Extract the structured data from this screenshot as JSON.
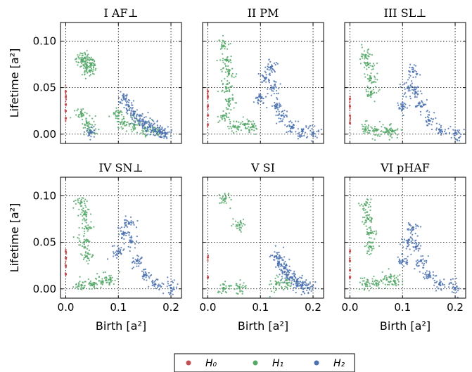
{
  "figure": {
    "panel_titles": [
      "I  AF⊥",
      "II  PM",
      "III  SL⊥",
      "IV  SN⊥",
      "V  SI",
      "VI  pHAF"
    ],
    "xlabel": "Birth [a²]",
    "ylabel": "Lifetime [a²]",
    "xticks": [
      "0.0",
      "0.1",
      "0.2"
    ],
    "yticks": [
      "0.00",
      "0.05",
      "0.10"
    ],
    "legend": [
      "H₀",
      "H₁",
      "H₂"
    ]
  },
  "colors": {
    "H0": "#c44e52",
    "H1": "#55a868",
    "H2": "#4c72b0"
  },
  "chart_data": [
    {
      "type": "scatter",
      "title": "I  AF⊥",
      "xlim": [
        -0.01,
        0.22
      ],
      "ylim": [
        -0.01,
        0.12
      ],
      "grid": true,
      "series": [
        {
          "name": "H₀",
          "points": [
            [
              0.0,
              0.017
            ],
            [
              0.0,
              0.025
            ],
            [
              0.0,
              0.032
            ],
            [
              0.0,
              0.04
            ],
            [
              0.0,
              0.046
            ]
          ]
        },
        {
          "name": "H₁",
          "points": [
            [
              0.03,
              0.08
            ],
            [
              0.036,
              0.082
            ],
            [
              0.04,
              0.074
            ],
            [
              0.045,
              0.068
            ],
            [
              0.048,
              0.076
            ],
            [
              0.03,
              0.022
            ],
            [
              0.04,
              0.012
            ],
            [
              0.046,
              0.004
            ],
            [
              0.1,
              0.02
            ],
            [
              0.11,
              0.012
            ],
            [
              0.13,
              0.01
            ],
            [
              0.15,
              0.006
            ],
            [
              0.17,
              0.003
            ]
          ]
        },
        {
          "name": "H₂",
          "points": [
            [
              0.048,
              0.002
            ],
            [
              0.11,
              0.04
            ],
            [
              0.12,
              0.03
            ],
            [
              0.13,
              0.022
            ],
            [
              0.14,
              0.015
            ],
            [
              0.15,
              0.012
            ],
            [
              0.16,
              0.008
            ],
            [
              0.17,
              0.005
            ],
            [
              0.18,
              0.003
            ],
            [
              0.19,
              0.001
            ]
          ]
        }
      ]
    },
    {
      "type": "scatter",
      "title": "II  PM",
      "xlim": [
        -0.01,
        0.22
      ],
      "ylim": [
        -0.01,
        0.12
      ],
      "grid": true,
      "series": [
        {
          "name": "H₀",
          "points": [
            [
              0.0,
              0.01
            ],
            [
              0.0,
              0.02
            ],
            [
              0.0,
              0.03
            ],
            [
              0.0,
              0.04
            ],
            [
              0.0,
              0.046
            ]
          ]
        },
        {
          "name": "H₁",
          "points": [
            [
              0.03,
              0.095
            ],
            [
              0.035,
              0.08
            ],
            [
              0.04,
              0.065
            ],
            [
              0.035,
              0.05
            ],
            [
              0.04,
              0.035
            ],
            [
              0.03,
              0.02
            ],
            [
              0.05,
              0.008
            ],
            [
              0.07,
              0.01
            ],
            [
              0.085,
              0.008
            ]
          ]
        },
        {
          "name": "H₂",
          "points": [
            [
              0.1,
              0.04
            ],
            [
              0.11,
              0.06
            ],
            [
              0.12,
              0.072
            ],
            [
              0.125,
              0.05
            ],
            [
              0.13,
              0.03
            ],
            [
              0.14,
              0.02
            ],
            [
              0.16,
              0.008
            ],
            [
              0.18,
              0.003
            ],
            [
              0.2,
              0.001
            ]
          ]
        }
      ]
    },
    {
      "type": "scatter",
      "title": "III  SL⊥",
      "xlim": [
        -0.01,
        0.22
      ],
      "ylim": [
        -0.01,
        0.12
      ],
      "grid": true,
      "series": [
        {
          "name": "H₀",
          "points": [
            [
              0.0,
              0.012
            ],
            [
              0.0,
              0.02
            ],
            [
              0.0,
              0.03
            ],
            [
              0.0,
              0.038
            ]
          ]
        },
        {
          "name": "H₁",
          "points": [
            [
              0.03,
              0.085
            ],
            [
              0.035,
              0.075
            ],
            [
              0.04,
              0.06
            ],
            [
              0.04,
              0.045
            ],
            [
              0.03,
              0.005
            ],
            [
              0.05,
              0.004
            ],
            [
              0.07,
              0.005
            ],
            [
              0.08,
              0.003
            ]
          ]
        },
        {
          "name": "H₂",
          "points": [
            [
              0.1,
              0.03
            ],
            [
              0.11,
              0.05
            ],
            [
              0.12,
              0.067
            ],
            [
              0.125,
              0.045
            ],
            [
              0.135,
              0.03
            ],
            [
              0.15,
              0.015
            ],
            [
              0.17,
              0.005
            ],
            [
              0.2,
              0.001
            ]
          ]
        }
      ]
    },
    {
      "type": "scatter",
      "title": "IV  SN⊥",
      "xlim": [
        -0.01,
        0.22
      ],
      "ylim": [
        -0.01,
        0.12
      ],
      "grid": true,
      "series": [
        {
          "name": "H₀",
          "points": [
            [
              0.0,
              0.016
            ],
            [
              0.0,
              0.025
            ],
            [
              0.0,
              0.033
            ],
            [
              0.0,
              0.04
            ]
          ]
        },
        {
          "name": "H₁",
          "points": [
            [
              0.03,
              0.093
            ],
            [
              0.035,
              0.08
            ],
            [
              0.04,
              0.065
            ],
            [
              0.035,
              0.05
            ],
            [
              0.04,
              0.035
            ],
            [
              0.03,
              0.004
            ],
            [
              0.05,
              0.004
            ],
            [
              0.07,
              0.008
            ],
            [
              0.085,
              0.01
            ]
          ]
        },
        {
          "name": "H₂",
          "points": [
            [
              0.1,
              0.04
            ],
            [
              0.11,
              0.06
            ],
            [
              0.12,
              0.07
            ],
            [
              0.125,
              0.05
            ],
            [
              0.135,
              0.03
            ],
            [
              0.15,
              0.015
            ],
            [
              0.17,
              0.005
            ],
            [
              0.2,
              0.001
            ]
          ]
        }
      ]
    },
    {
      "type": "scatter",
      "title": "V  SI",
      "xlim": [
        -0.01,
        0.22
      ],
      "ylim": [
        -0.01,
        0.12
      ],
      "grid": true,
      "series": [
        {
          "name": "H₀",
          "points": [
            [
              0.0,
              0.034
            ],
            [
              0.0,
              0.012
            ]
          ]
        },
        {
          "name": "H₁",
          "points": [
            [
              0.033,
              0.097
            ],
            [
              0.06,
              0.069
            ],
            [
              0.03,
              0.001
            ],
            [
              0.06,
              0.001
            ],
            [
              0.13,
              0.005
            ],
            [
              0.15,
              0.006
            ]
          ]
        },
        {
          "name": "H₂",
          "points": [
            [
              0.13,
              0.035
            ],
            [
              0.135,
              0.028
            ],
            [
              0.145,
              0.022
            ],
            [
              0.15,
              0.015
            ],
            [
              0.16,
              0.012
            ],
            [
              0.17,
              0.008
            ],
            [
              0.18,
              0.004
            ],
            [
              0.19,
              0.001
            ]
          ]
        }
      ]
    },
    {
      "type": "scatter",
      "title": "VI  pHAF",
      "xlim": [
        -0.01,
        0.22
      ],
      "ylim": [
        -0.01,
        0.12
      ],
      "grid": true,
      "series": [
        {
          "name": "H₀",
          "points": [
            [
              0.0,
              0.012
            ],
            [
              0.0,
              0.02
            ],
            [
              0.0,
              0.03
            ],
            [
              0.0,
              0.04
            ]
          ]
        },
        {
          "name": "H₁",
          "points": [
            [
              0.03,
              0.09
            ],
            [
              0.035,
              0.075
            ],
            [
              0.04,
              0.06
            ],
            [
              0.04,
              0.045
            ],
            [
              0.03,
              0.005
            ],
            [
              0.05,
              0.006
            ],
            [
              0.07,
              0.01
            ],
            [
              0.085,
              0.008
            ]
          ]
        },
        {
          "name": "H₂",
          "points": [
            [
              0.1,
              0.03
            ],
            [
              0.11,
              0.05
            ],
            [
              0.12,
              0.066
            ],
            [
              0.125,
              0.045
            ],
            [
              0.135,
              0.03
            ],
            [
              0.15,
              0.015
            ],
            [
              0.17,
              0.005
            ],
            [
              0.2,
              0.001
            ]
          ]
        }
      ]
    }
  ]
}
